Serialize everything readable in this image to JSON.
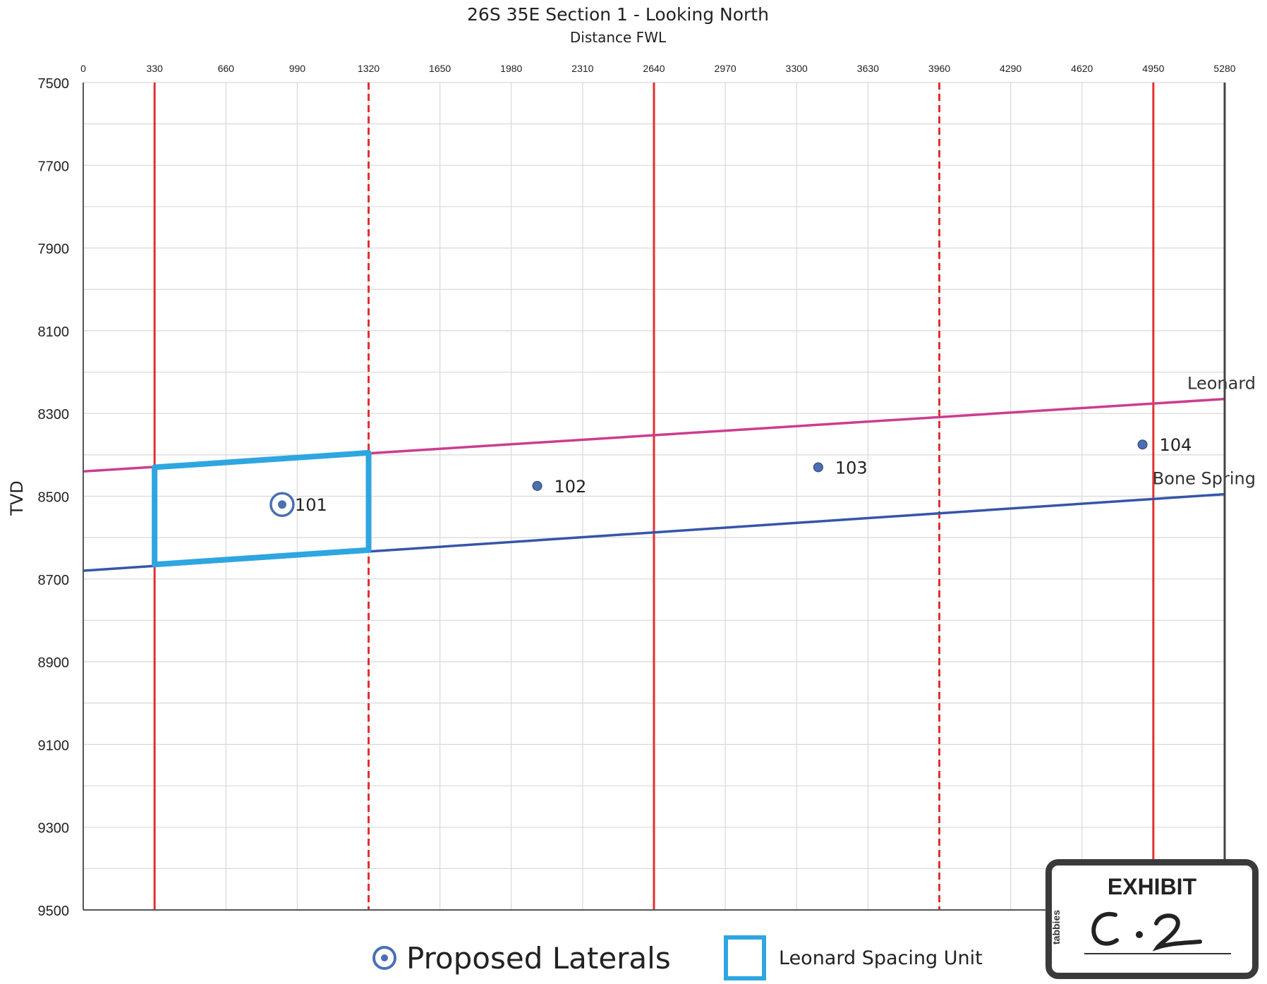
{
  "chart_data": {
    "type": "scatter",
    "title": "26S 35E Section 1 - Looking North",
    "subtitle": "Distance FWL",
    "xlabel": "",
    "ylabel": "TVD",
    "xlim": [
      0,
      5280
    ],
    "ylim": [
      7500,
      9500
    ],
    "y_inverted": true,
    "x_ticks": [
      0,
      330,
      660,
      990,
      1320,
      1650,
      1980,
      2310,
      2640,
      2970,
      3300,
      3630,
      3960,
      4290,
      4620,
      4950,
      5280
    ],
    "y_ticks": [
      7500,
      7700,
      7900,
      8100,
      8300,
      8500,
      8700,
      8900,
      9100,
      9300,
      9500
    ],
    "grid": true,
    "vertical_lines": [
      {
        "x": 330,
        "style": "solid",
        "color": "#e03030"
      },
      {
        "x": 1320,
        "style": "dashed",
        "color": "#e03030"
      },
      {
        "x": 2640,
        "style": "solid",
        "color": "#e03030"
      },
      {
        "x": 3960,
        "style": "dashed",
        "color": "#e03030"
      },
      {
        "x": 4950,
        "style": "solid",
        "color": "#e03030"
      }
    ],
    "formation_lines": [
      {
        "name": "Leonard",
        "color": "#cc3d8f",
        "x": [
          0,
          5280
        ],
        "y": [
          8440,
          8265
        ]
      },
      {
        "name": "Bone Spring",
        "color": "#3556a8",
        "x": [
          0,
          5280
        ],
        "y": [
          8680,
          8495
        ]
      }
    ],
    "wells": [
      {
        "label": "101",
        "x": 920,
        "y": 8520,
        "proposed": true
      },
      {
        "label": "102",
        "x": 2100,
        "y": 8475,
        "proposed": false
      },
      {
        "label": "103",
        "x": 3400,
        "y": 8430,
        "proposed": false
      },
      {
        "label": "104",
        "x": 4900,
        "y": 8375,
        "proposed": false
      }
    ],
    "spacing_unit": {
      "x": [
        330,
        1320
      ],
      "y_top": [
        8430,
        8395
      ],
      "y_bottom": [
        8665,
        8630
      ],
      "color": "#2ea6e0"
    }
  },
  "legend": {
    "proposed_laterals": "Proposed Laterals",
    "leonard_spacing_unit": "Leonard Spacing Unit"
  },
  "exhibit": {
    "title": "EXHIBIT",
    "brand": "tabbies",
    "label": "C-2"
  },
  "colors": {
    "grid": "#d9d9d9",
    "boundary": "#e03030",
    "leonard": "#cc3d8f",
    "bone_spring": "#3556a8",
    "spacing_unit": "#2ea6e0",
    "well": "#4a6fb5"
  }
}
